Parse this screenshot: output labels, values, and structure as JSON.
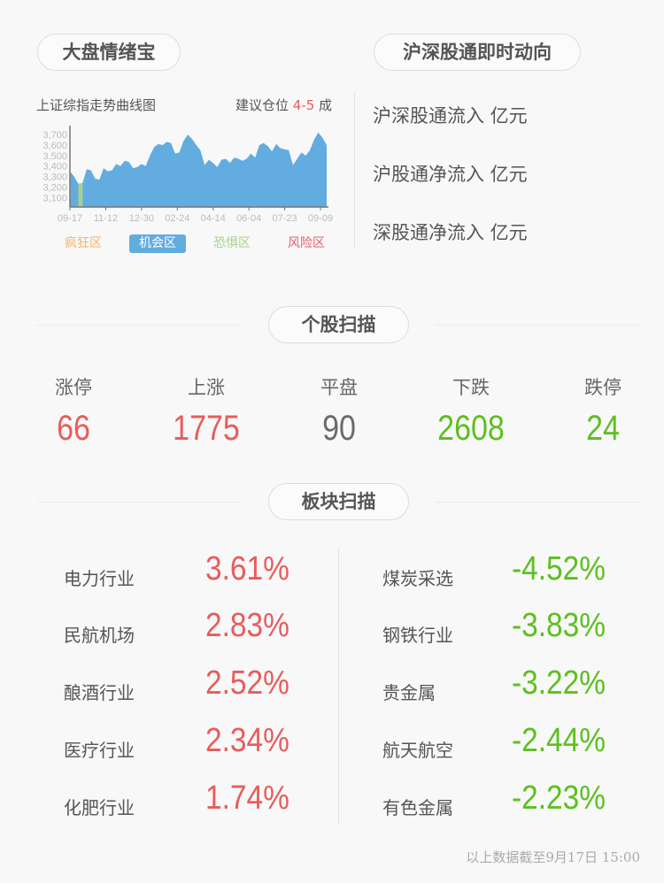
{
  "left_panel": {
    "title": "大盘情绪宝",
    "chart_title": "上证综指走势曲线图",
    "advice_prefix": "建议仓位 ",
    "advice_value": "4-5",
    "advice_suffix": " 成",
    "zones": [
      {
        "label": "疯狂区",
        "color": "#f6b26b",
        "active": false
      },
      {
        "label": "机会区",
        "color": "#62ace0",
        "active": true
      },
      {
        "label": "恐惧区",
        "color": "#a8d08d",
        "active": false
      },
      {
        "label": "风险区",
        "color": "#ea5c6c",
        "active": false
      }
    ]
  },
  "chart_data": {
    "type": "area",
    "title": "上证综指走势曲线图",
    "ylim": [
      3010,
      3760
    ],
    "yticks": [
      "3,700",
      "3,600",
      "3,500",
      "3,400",
      "3,300",
      "3,200",
      "3,100"
    ],
    "ytick_values": [
      3700,
      3600,
      3500,
      3400,
      3300,
      3200,
      3100
    ],
    "xticks": [
      "09-17",
      "11-12",
      "12-30",
      "02-24",
      "04-14",
      "06-04",
      "07-23",
      "09-09"
    ],
    "values": [
      3350,
      3300,
      3230,
      3240,
      3370,
      3360,
      3280,
      3270,
      3380,
      3350,
      3360,
      3420,
      3400,
      3450,
      3440,
      3380,
      3390,
      3420,
      3400,
      3500,
      3580,
      3610,
      3600,
      3630,
      3620,
      3520,
      3530,
      3640,
      3700,
      3660,
      3600,
      3550,
      3410,
      3460,
      3430,
      3390,
      3460,
      3470,
      3430,
      3480,
      3470,
      3450,
      3470,
      3520,
      3480,
      3600,
      3620,
      3590,
      3540,
      3610,
      3570,
      3560,
      3550,
      3410,
      3470,
      3530,
      3500,
      3550,
      3650,
      3720,
      3670,
      3600
    ],
    "fear_zone_indices": [
      2,
      3
    ],
    "colors": {
      "main": "#62ace0",
      "fear": "#a8d08d"
    }
  },
  "right_panel": {
    "title": "沪深股通即时动向",
    "lines": [
      "沪深股通流入 亿元",
      "沪股通净流入 亿元",
      "深股通净流入 亿元"
    ]
  },
  "stocks": {
    "title": "个股扫描",
    "items": [
      {
        "label": "涨停",
        "value": "66",
        "tone": "red"
      },
      {
        "label": "上涨",
        "value": "1775",
        "tone": "red"
      },
      {
        "label": "平盘",
        "value": "90",
        "tone": "gray"
      },
      {
        "label": "下跌",
        "value": "2608",
        "tone": "green"
      },
      {
        "label": "跌停",
        "value": "24",
        "tone": "green"
      }
    ]
  },
  "sectors": {
    "title": "板块扫描",
    "gainers": [
      {
        "name": "电力行业",
        "value": "3.61%"
      },
      {
        "name": "民航机场",
        "value": "2.83%"
      },
      {
        "name": "酿酒行业",
        "value": "2.52%"
      },
      {
        "name": "医疗行业",
        "value": "2.34%"
      },
      {
        "name": "化肥行业",
        "value": "1.74%"
      }
    ],
    "losers": [
      {
        "name": "煤炭采选",
        "value": "-4.52%"
      },
      {
        "name": "钢铁行业",
        "value": "-3.83%"
      },
      {
        "name": "贵金属",
        "value": "-3.22%"
      },
      {
        "name": "航天航空",
        "value": "-2.44%"
      },
      {
        "name": "有色金属",
        "value": "-2.23%"
      }
    ]
  },
  "footer": "以上数据截至9月17日 15:00",
  "colors": {
    "up": "#e85c5c",
    "down": "#5cc01e",
    "flat": "#6a6a6a"
  }
}
